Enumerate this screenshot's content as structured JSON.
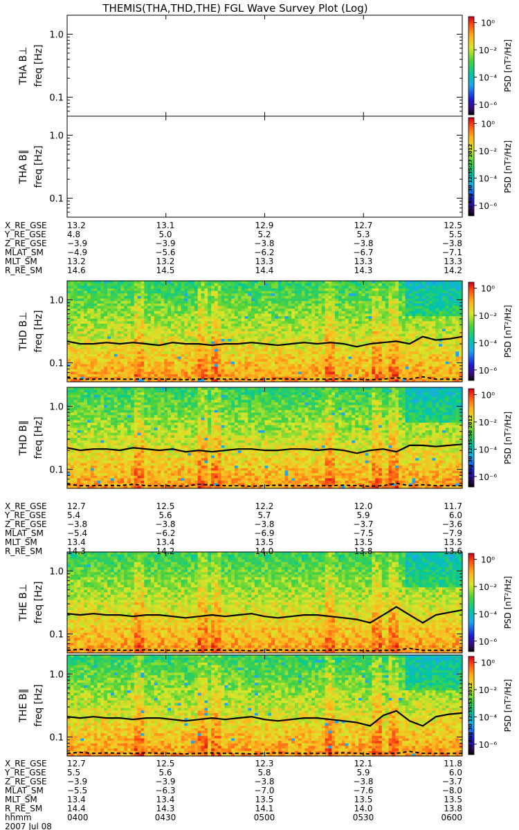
{
  "title": "THEMIS(THA,THD,THE) FGL Wave Survey Plot (Log)",
  "chart_data": [
    {
      "type": "heatmap",
      "probe": "THA",
      "component": "B⊥",
      "ylabel": "THA B⊥",
      "ylabel2": "freq [Hz]",
      "yscale": "log",
      "ylim": [
        0.05,
        2.0
      ],
      "yticks": [
        "1.0",
        "0.1"
      ],
      "has_data": false,
      "colorbar": {
        "label": "PSD [nT²/Hz]",
        "ticks": [
          "10⁰",
          "10⁻²",
          "10⁻⁴",
          "10⁻⁶"
        ],
        "scale": "log"
      }
    },
    {
      "type": "heatmap",
      "probe": "THA",
      "component": "B∥",
      "ylabel": "THA B∥",
      "ylabel2": "freq [Hz]",
      "yscale": "log",
      "ylim": [
        0.05,
        2.0
      ],
      "yticks": [
        "1.0",
        "0.1"
      ],
      "has_data": false,
      "colorbar": {
        "label": "PSD [nT²/Hz]",
        "ticks": [
          "10⁰",
          "10⁻²",
          "10⁻⁴",
          "10⁻⁶"
        ],
        "scale": "log"
      }
    },
    {
      "type": "heatmap",
      "probe": "THD",
      "component": "B⊥",
      "ylabel": "THD B⊥",
      "ylabel2": "freq [Hz]",
      "yscale": "log",
      "ylim": [
        0.05,
        2.0
      ],
      "yticks": [
        "1.0",
        "0.1"
      ],
      "has_data": true,
      "seed": 11,
      "colorbar": {
        "label": "PSD [nT²/Hz]",
        "ticks": [
          "10⁰",
          "10⁻²",
          "10⁻⁴",
          "10⁻⁶"
        ],
        "scale": "log"
      },
      "solid_line_hz": [
        0.22,
        0.2,
        0.2,
        0.21,
        0.2,
        0.21,
        0.2,
        0.19,
        0.21,
        0.2,
        0.2,
        0.19,
        0.2,
        0.2,
        0.21,
        0.2,
        0.19,
        0.2,
        0.21,
        0.2,
        0.21,
        0.2,
        0.18,
        0.2,
        0.21,
        0.22,
        0.2,
        0.26,
        0.23,
        0.24,
        0.26
      ],
      "dashed_line_hz": [
        0.058,
        0.055,
        0.055,
        0.056,
        0.055,
        0.055,
        0.056,
        0.055,
        0.055,
        0.054,
        0.055,
        0.056,
        0.055,
        0.055,
        0.054,
        0.055,
        0.056,
        0.055,
        0.055,
        0.055,
        0.055,
        0.056,
        0.055,
        0.054,
        0.055,
        0.058,
        0.055,
        0.06,
        0.055,
        0.055,
        0.055
      ]
    },
    {
      "type": "heatmap",
      "probe": "THD",
      "component": "B∥",
      "ylabel": "THD B∥",
      "ylabel2": "freq [Hz]",
      "yscale": "log",
      "ylim": [
        0.05,
        2.0
      ],
      "yticks": [
        "1.0",
        "0.1"
      ],
      "has_data": true,
      "seed": 23,
      "colorbar": {
        "label": "PSD [nT²/Hz]",
        "ticks": [
          "10⁰",
          "10⁻²",
          "10⁻⁴",
          "10⁻⁶"
        ],
        "scale": "log"
      },
      "solid_line_hz": [
        0.22,
        0.2,
        0.21,
        0.21,
        0.2,
        0.22,
        0.21,
        0.2,
        0.21,
        0.19,
        0.2,
        0.19,
        0.2,
        0.21,
        0.21,
        0.2,
        0.2,
        0.21,
        0.21,
        0.2,
        0.21,
        0.2,
        0.18,
        0.2,
        0.21,
        0.19,
        0.24,
        0.24,
        0.23,
        0.24,
        0.25
      ],
      "dashed_line_hz": [
        0.058,
        0.055,
        0.055,
        0.056,
        0.055,
        0.058,
        0.055,
        0.055,
        0.055,
        0.054,
        0.058,
        0.056,
        0.055,
        0.055,
        0.054,
        0.055,
        0.056,
        0.055,
        0.055,
        0.055,
        0.055,
        0.056,
        0.055,
        0.054,
        0.055,
        0.06,
        0.055,
        0.057,
        0.055,
        0.055,
        0.055
      ]
    },
    {
      "type": "heatmap",
      "probe": "THE",
      "component": "B⊥",
      "ylabel": "THE B⊥",
      "ylabel2": "freq [Hz]",
      "yscale": "log",
      "ylim": [
        0.05,
        2.0
      ],
      "yticks": [
        "1.0",
        "0.1"
      ],
      "has_data": true,
      "seed": 37,
      "colorbar": {
        "label": "PSD [nT²/Hz]",
        "ticks": [
          "10⁰",
          "10⁻²",
          "10⁻⁴",
          "10⁻⁶"
        ],
        "scale": "log"
      },
      "solid_line_hz": [
        0.21,
        0.2,
        0.21,
        0.2,
        0.2,
        0.19,
        0.2,
        0.2,
        0.19,
        0.18,
        0.19,
        0.2,
        0.19,
        0.2,
        0.21,
        0.19,
        0.18,
        0.19,
        0.2,
        0.2,
        0.19,
        0.18,
        0.17,
        0.15,
        0.2,
        0.27,
        0.2,
        0.15,
        0.2,
        0.22,
        0.24
      ],
      "dashed_line_hz": [
        0.055,
        0.057,
        0.055,
        0.056,
        0.055,
        0.055,
        0.056,
        0.055,
        0.055,
        0.054,
        0.055,
        0.056,
        0.055,
        0.055,
        0.054,
        0.055,
        0.056,
        0.055,
        0.055,
        0.055,
        0.055,
        0.056,
        0.055,
        0.054,
        0.055,
        0.055,
        0.059,
        0.055,
        0.055,
        0.055,
        0.055
      ]
    },
    {
      "type": "heatmap",
      "probe": "THE",
      "component": "B∥",
      "ylabel": "THE B∥",
      "ylabel2": "freq [Hz]",
      "yscale": "log",
      "ylim": [
        0.05,
        2.0
      ],
      "yticks": [
        "1.0",
        "0.1"
      ],
      "has_data": true,
      "seed": 51,
      "colorbar": {
        "label": "PSD [nT²/Hz]",
        "ticks": [
          "10⁰",
          "10⁻²",
          "10⁻⁴",
          "10⁻⁶"
        ],
        "scale": "log"
      },
      "solid_line_hz": [
        0.21,
        0.2,
        0.21,
        0.2,
        0.2,
        0.19,
        0.2,
        0.2,
        0.19,
        0.18,
        0.19,
        0.2,
        0.19,
        0.2,
        0.21,
        0.19,
        0.18,
        0.19,
        0.2,
        0.2,
        0.19,
        0.18,
        0.17,
        0.15,
        0.22,
        0.26,
        0.18,
        0.15,
        0.21,
        0.23,
        0.24
      ],
      "dashed_line_hz": [
        0.055,
        0.057,
        0.055,
        0.056,
        0.055,
        0.055,
        0.056,
        0.055,
        0.055,
        0.054,
        0.055,
        0.056,
        0.055,
        0.055,
        0.054,
        0.055,
        0.056,
        0.055,
        0.055,
        0.055,
        0.055,
        0.056,
        0.055,
        0.054,
        0.055,
        0.055,
        0.059,
        0.055,
        0.055,
        0.055,
        0.055
      ]
    }
  ],
  "timestamp_label": "Thu Aug 30 12:35:27 2012",
  "timestamp_label_2": "Thu Aug 30 12:35:50 2012",
  "timestamp_label_3": "Thu Aug 30 12:35:53 2012",
  "ephemeris_tables": [
    {
      "rows": [
        {
          "label": "X_RE_GSE",
          "values": [
            "13.2",
            "13.1",
            "12.9",
            "12.7",
            "12.5"
          ]
        },
        {
          "label": "Y_RE_GSE",
          "values": [
            "4.8",
            "5.0",
            "5.2",
            "5.3",
            "5.5"
          ]
        },
        {
          "label": "Z_RE_GSE",
          "values": [
            "−3.9",
            "−3.9",
            "−3.8",
            "−3.8",
            "−3.8"
          ]
        },
        {
          "label": "MLAT_SM",
          "values": [
            "−4.9",
            "−5.6",
            "−6.2",
            "−6.7",
            "−7.1"
          ]
        },
        {
          "label": "MLT_SM",
          "values": [
            "13.2",
            "13.2",
            "13.3",
            "13.3",
            "13.3"
          ]
        },
        {
          "label": "R_RE_SM",
          "values": [
            "14.6",
            "14.5",
            "14.4",
            "14.3",
            "14.2"
          ]
        }
      ]
    },
    {
      "rows": [
        {
          "label": "X_RE_GSE",
          "values": [
            "12.7",
            "12.5",
            "12.2",
            "12.0",
            "11.7"
          ]
        },
        {
          "label": "Y_RE_GSE",
          "values": [
            "5.4",
            "5.6",
            "5.7",
            "5.9",
            "6.0"
          ]
        },
        {
          "label": "Z_RE_GSE",
          "values": [
            "−3.8",
            "−3.8",
            "−3.8",
            "−3.7",
            "−3.6"
          ]
        },
        {
          "label": "MLAT_SM",
          "values": [
            "−5.4",
            "−6.2",
            "−6.9",
            "−7.5",
            "−7.9"
          ]
        },
        {
          "label": "MLT_SM",
          "values": [
            "13.4",
            "13.4",
            "13.5",
            "13.5",
            "13.5"
          ]
        },
        {
          "label": "R_RE_SM",
          "values": [
            "14.3",
            "14.2",
            "14.0",
            "13.8",
            "13.6"
          ]
        }
      ]
    },
    {
      "rows": [
        {
          "label": "X_RE_GSE",
          "values": [
            "12.7",
            "12.5",
            "12.3",
            "12.1",
            "11.8"
          ]
        },
        {
          "label": "Y_RE_GSE",
          "values": [
            "5.5",
            "5.6",
            "5.8",
            "5.9",
            "6.0"
          ]
        },
        {
          "label": "Z_RE_GSE",
          "values": [
            "−3.9",
            "−3.9",
            "−3.8",
            "−3.8",
            "−3.7"
          ]
        },
        {
          "label": "MLAT_SM",
          "values": [
            "−5.5",
            "−6.3",
            "−7.0",
            "−7.6",
            "−8.0"
          ]
        },
        {
          "label": "MLT_SM",
          "values": [
            "13.4",
            "13.4",
            "13.5",
            "13.5",
            "13.5"
          ]
        },
        {
          "label": "R_RE_SM",
          "values": [
            "14.4",
            "14.3",
            "14.1",
            "14.0",
            "13.8"
          ]
        },
        {
          "label": "hhmm",
          "values": [
            "0400",
            "0430",
            "0500",
            "0530",
            "0600"
          ]
        }
      ],
      "date": "2007 Jul 08"
    }
  ]
}
